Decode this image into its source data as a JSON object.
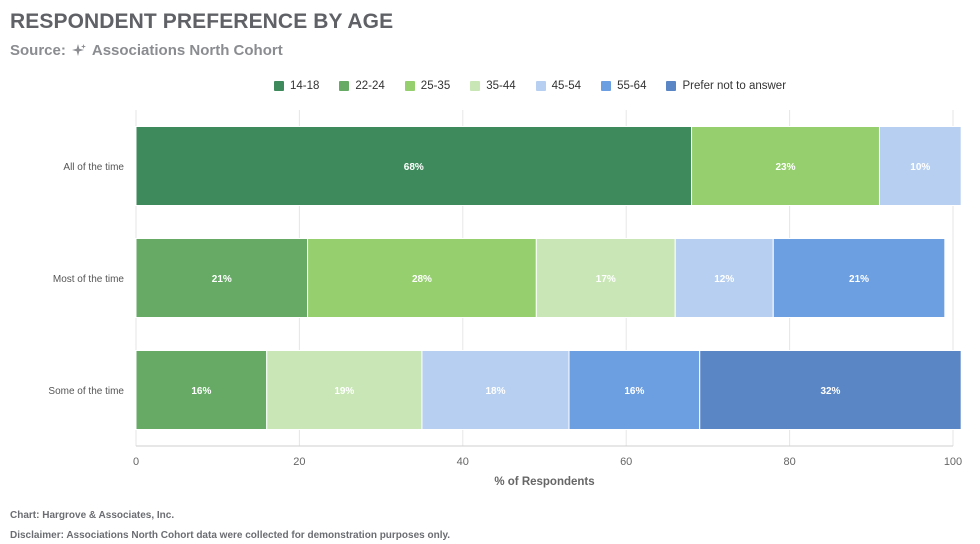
{
  "title": "RESPONDENT PREFERENCE BY AGE",
  "subtitle": {
    "prefix": "Source:",
    "icon": "sparkle-icon",
    "name": "Associations North Cohort"
  },
  "footer": {
    "credit": "Chart: Hargrove & Associates, Inc.",
    "disclaimer": "Disclaimer: Associations North Cohort data were collected for demonstration purposes only."
  },
  "chart_data": {
    "type": "bar",
    "orientation": "horizontal",
    "stacked": true,
    "title": "RESPONDENT PREFERENCE BY AGE",
    "xlabel": "% of Respondents",
    "ylabel": "",
    "xlim": [
      0,
      100
    ],
    "xticks": [
      0,
      20,
      40,
      60,
      80,
      100
    ],
    "grid": true,
    "legend_position": "top",
    "categories": [
      "All of the time",
      "Most of the time",
      "Some of the time"
    ],
    "series": [
      {
        "name": "14-18",
        "color": "#3e8a5c",
        "values": [
          68,
          0,
          0
        ]
      },
      {
        "name": "22-24",
        "color": "#66aa66",
        "values": [
          0,
          21,
          16
        ]
      },
      {
        "name": "25-35",
        "color": "#95cf6e",
        "values": [
          23,
          28,
          0
        ]
      },
      {
        "name": "35-44",
        "color": "#c9e7b6",
        "values": [
          0,
          17,
          19
        ]
      },
      {
        "name": "45-54",
        "color": "#b7cff0",
        "values": [
          10,
          12,
          18
        ]
      },
      {
        "name": "55-64",
        "color": "#6c9fe2",
        "values": [
          0,
          21,
          16
        ]
      },
      {
        "name": "Prefer not to answer",
        "color": "#5b86c5",
        "values": [
          0,
          0,
          32
        ]
      }
    ]
  }
}
